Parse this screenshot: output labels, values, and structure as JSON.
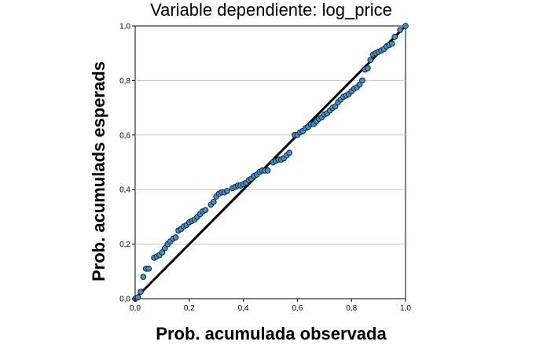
{
  "chart_data": {
    "type": "scatter",
    "title": "Variable dependiente: log_price",
    "xlabel": "Prob. acumulada observada",
    "ylabel": "Prob. acumulads esperads",
    "xlim": [
      0,
      1
    ],
    "ylim": [
      0,
      1
    ],
    "x_ticks": [
      "0,0",
      "0,2",
      "0,4",
      "0,6",
      "0,8",
      "1,0"
    ],
    "y_ticks": [
      "0,0",
      "0,2",
      "0,4",
      "0,6",
      "0,8",
      "1,0"
    ],
    "grid": "horizontal",
    "reference_line": [
      [
        0,
        0
      ],
      [
        1,
        1
      ]
    ],
    "colors": {
      "point_fill": "#3a8fd6",
      "point_stroke": "#1a1a1a",
      "line": "#000000",
      "grid": "#c8c8c8"
    },
    "points": [
      [
        0.0,
        0.0
      ],
      [
        0.01,
        0.005
      ],
      [
        0.02,
        0.025
      ],
      [
        0.03,
        0.08
      ],
      [
        0.04,
        0.11
      ],
      [
        0.05,
        0.11
      ],
      [
        0.07,
        0.15
      ],
      [
        0.08,
        0.155
      ],
      [
        0.09,
        0.16
      ],
      [
        0.1,
        0.17
      ],
      [
        0.11,
        0.185
      ],
      [
        0.12,
        0.2
      ],
      [
        0.13,
        0.21
      ],
      [
        0.14,
        0.22
      ],
      [
        0.15,
        0.225
      ],
      [
        0.16,
        0.25
      ],
      [
        0.17,
        0.255
      ],
      [
        0.18,
        0.265
      ],
      [
        0.19,
        0.27
      ],
      [
        0.2,
        0.28
      ],
      [
        0.21,
        0.285
      ],
      [
        0.22,
        0.29
      ],
      [
        0.23,
        0.3
      ],
      [
        0.24,
        0.31
      ],
      [
        0.25,
        0.32
      ],
      [
        0.26,
        0.325
      ],
      [
        0.28,
        0.345
      ],
      [
        0.29,
        0.355
      ],
      [
        0.3,
        0.375
      ],
      [
        0.31,
        0.385
      ],
      [
        0.32,
        0.39
      ],
      [
        0.33,
        0.39
      ],
      [
        0.34,
        0.395
      ],
      [
        0.36,
        0.405
      ],
      [
        0.37,
        0.41
      ],
      [
        0.38,
        0.415
      ],
      [
        0.39,
        0.415
      ],
      [
        0.4,
        0.42
      ],
      [
        0.41,
        0.425
      ],
      [
        0.42,
        0.435
      ],
      [
        0.43,
        0.44
      ],
      [
        0.44,
        0.45
      ],
      [
        0.45,
        0.455
      ],
      [
        0.46,
        0.465
      ],
      [
        0.47,
        0.47
      ],
      [
        0.48,
        0.47
      ],
      [
        0.49,
        0.47
      ],
      [
        0.51,
        0.5
      ],
      [
        0.52,
        0.505
      ],
      [
        0.53,
        0.51
      ],
      [
        0.54,
        0.51
      ],
      [
        0.55,
        0.515
      ],
      [
        0.56,
        0.525
      ],
      [
        0.57,
        0.535
      ],
      [
        0.59,
        0.6
      ],
      [
        0.6,
        0.6
      ],
      [
        0.61,
        0.61
      ],
      [
        0.62,
        0.615
      ],
      [
        0.63,
        0.625
      ],
      [
        0.64,
        0.63
      ],
      [
        0.65,
        0.64
      ],
      [
        0.66,
        0.64
      ],
      [
        0.67,
        0.65
      ],
      [
        0.68,
        0.66
      ],
      [
        0.69,
        0.665
      ],
      [
        0.7,
        0.675
      ],
      [
        0.71,
        0.68
      ],
      [
        0.72,
        0.69
      ],
      [
        0.73,
        0.7
      ],
      [
        0.74,
        0.705
      ],
      [
        0.75,
        0.72
      ],
      [
        0.76,
        0.73
      ],
      [
        0.77,
        0.74
      ],
      [
        0.78,
        0.745
      ],
      [
        0.79,
        0.75
      ],
      [
        0.8,
        0.76
      ],
      [
        0.81,
        0.77
      ],
      [
        0.82,
        0.775
      ],
      [
        0.83,
        0.785
      ],
      [
        0.84,
        0.8
      ],
      [
        0.85,
        0.84
      ],
      [
        0.86,
        0.845
      ],
      [
        0.87,
        0.875
      ],
      [
        0.88,
        0.895
      ],
      [
        0.89,
        0.9
      ],
      [
        0.9,
        0.905
      ],
      [
        0.91,
        0.91
      ],
      [
        0.92,
        0.915
      ],
      [
        0.93,
        0.925
      ],
      [
        0.94,
        0.93
      ],
      [
        0.95,
        0.935
      ],
      [
        0.96,
        0.96
      ],
      [
        0.98,
        0.985
      ],
      [
        1.0,
        1.0
      ]
    ]
  }
}
